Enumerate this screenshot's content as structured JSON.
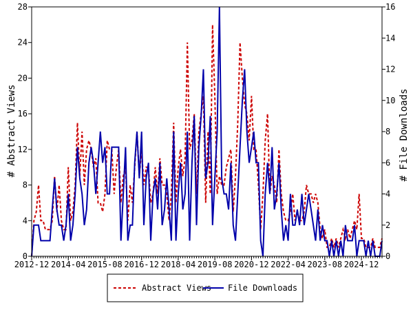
{
  "chart_data": {
    "type": "line",
    "title": "",
    "xlabel": "",
    "ylabel_left": "# Abstract Views",
    "ylabel_right": "# File Downloads",
    "ylim_left": [
      0,
      28
    ],
    "ylim_right": [
      0,
      16
    ],
    "yticks_left": [
      0,
      4,
      8,
      12,
      16,
      20,
      24,
      28
    ],
    "yticks_right": [
      0,
      2,
      4,
      6,
      8,
      10,
      12,
      14,
      16
    ],
    "x_tick_labels": [
      "2012-12",
      "2014-04",
      "2015-08",
      "2016-12",
      "2018-04",
      "2019-08",
      "2020-12",
      "2022-04",
      "2023-08",
      "2024-12"
    ],
    "legend_position": "bottom-center",
    "grid": false,
    "series": [
      {
        "name": "Abstract Views",
        "axis": "left",
        "color": "#cc0000",
        "style": "dashed",
        "values": [
          0,
          4,
          5,
          8,
          4,
          4,
          3,
          3,
          3,
          4,
          9,
          5,
          8,
          4,
          3,
          3,
          10,
          4,
          5,
          8,
          15,
          9,
          14,
          8,
          12,
          13,
          12,
          10,
          11,
          6,
          6,
          5,
          7,
          13,
          12,
          12,
          7,
          10,
          12,
          6,
          9,
          10,
          4,
          8,
          6,
          10,
          14,
          9,
          12,
          8,
          10,
          10,
          6,
          7,
          10,
          7,
          11,
          8,
          8,
          7,
          4,
          7,
          15,
          6,
          10,
          12,
          9,
          11,
          24,
          12,
          13,
          16,
          7,
          14,
          16,
          18,
          6,
          14,
          7,
          26,
          18,
          7,
          9,
          8,
          8,
          10,
          11,
          12,
          5,
          9,
          15,
          24,
          20,
          17,
          16,
          13,
          18,
          12,
          12,
          8,
          3,
          7,
          13,
          16,
          7,
          9,
          8,
          6,
          12,
          7,
          5,
          4,
          4,
          5,
          7,
          4,
          5,
          4,
          4,
          5,
          8,
          7,
          7,
          6,
          7,
          6,
          3,
          2,
          3,
          1,
          1,
          2,
          1,
          2,
          1,
          2,
          3,
          2,
          3,
          2,
          3,
          4,
          3,
          7,
          2,
          2,
          1,
          1,
          1,
          2,
          1,
          1,
          1,
          2
        ]
      },
      {
        "name": "File Downloads",
        "axis": "right",
        "color": "#0000aa",
        "style": "solid",
        "values": [
          0,
          2,
          2,
          2,
          1,
          1,
          1,
          1,
          1,
          3,
          5,
          3,
          2,
          2,
          1,
          2,
          4,
          1,
          2,
          4,
          7,
          5,
          4,
          2,
          3,
          6,
          7,
          6,
          4,
          6,
          8,
          6,
          7,
          4,
          4,
          7,
          7,
          7,
          7,
          1,
          4,
          7,
          1,
          2,
          2,
          6,
          8,
          5,
          8,
          2,
          5,
          6,
          1,
          4,
          5,
          3,
          6,
          2,
          3,
          5,
          3,
          1,
          8,
          1,
          4,
          6,
          3,
          4,
          8,
          1,
          6,
          9,
          2,
          7,
          9,
          12,
          5,
          6,
          9,
          2,
          5,
          8,
          16,
          5,
          4,
          4,
          3,
          6,
          2,
          1,
          4,
          7,
          10,
          12,
          8,
          6,
          7,
          8,
          6,
          6,
          1,
          0,
          4,
          6,
          4,
          7,
          3,
          4,
          6,
          3,
          1,
          2,
          1,
          4,
          2,
          2,
          3,
          2,
          4,
          2,
          3,
          4,
          3,
          2,
          1,
          3,
          1,
          2,
          1,
          1,
          0,
          1,
          0,
          1,
          0,
          1,
          0,
          2,
          1,
          1,
          1,
          2,
          0,
          1,
          1,
          1,
          0,
          1,
          0,
          1,
          0,
          0,
          0,
          1
        ]
      }
    ]
  }
}
